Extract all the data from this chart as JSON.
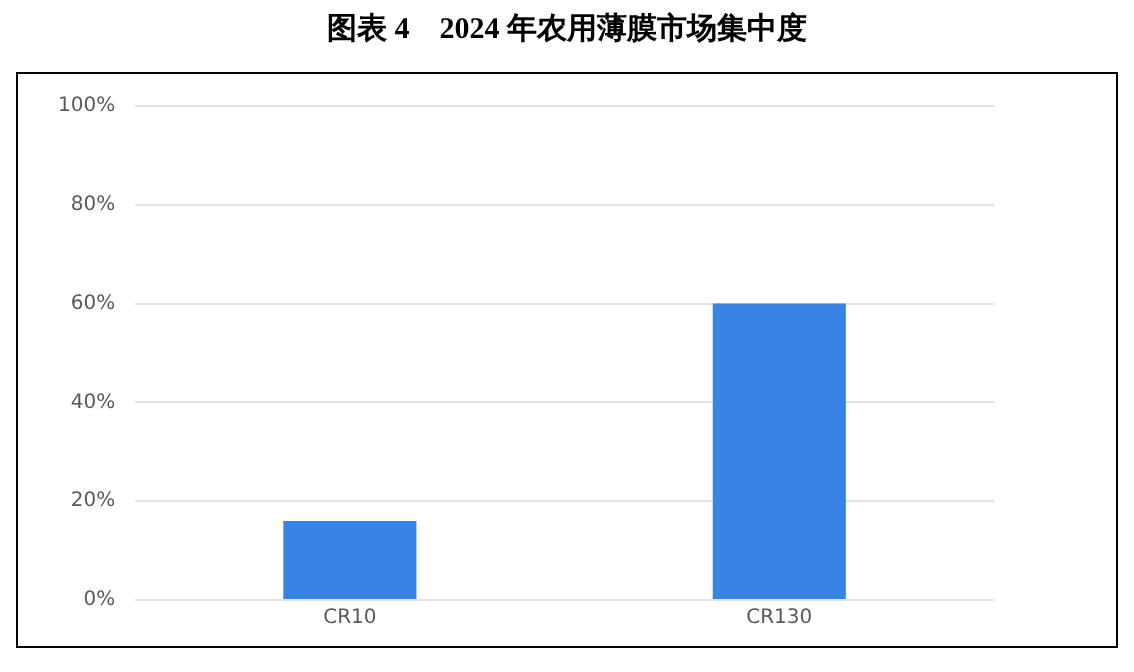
{
  "chart_data": {
    "type": "bar",
    "title": "图表 4　2024 年农用薄膜市场集中度",
    "categories": [
      "CR10",
      "CR130"
    ],
    "values": [
      16,
      60
    ],
    "color": "#3884e4",
    "ylim": [
      0,
      100
    ],
    "yticks": [
      {
        "value": 0,
        "label": "0%"
      },
      {
        "value": 20,
        "label": "20%"
      },
      {
        "value": 40,
        "label": "40%"
      },
      {
        "value": 60,
        "label": "60%"
      },
      {
        "value": 80,
        "label": "80%"
      },
      {
        "value": 100,
        "label": "100%"
      }
    ],
    "grid": "y",
    "legend": false
  }
}
